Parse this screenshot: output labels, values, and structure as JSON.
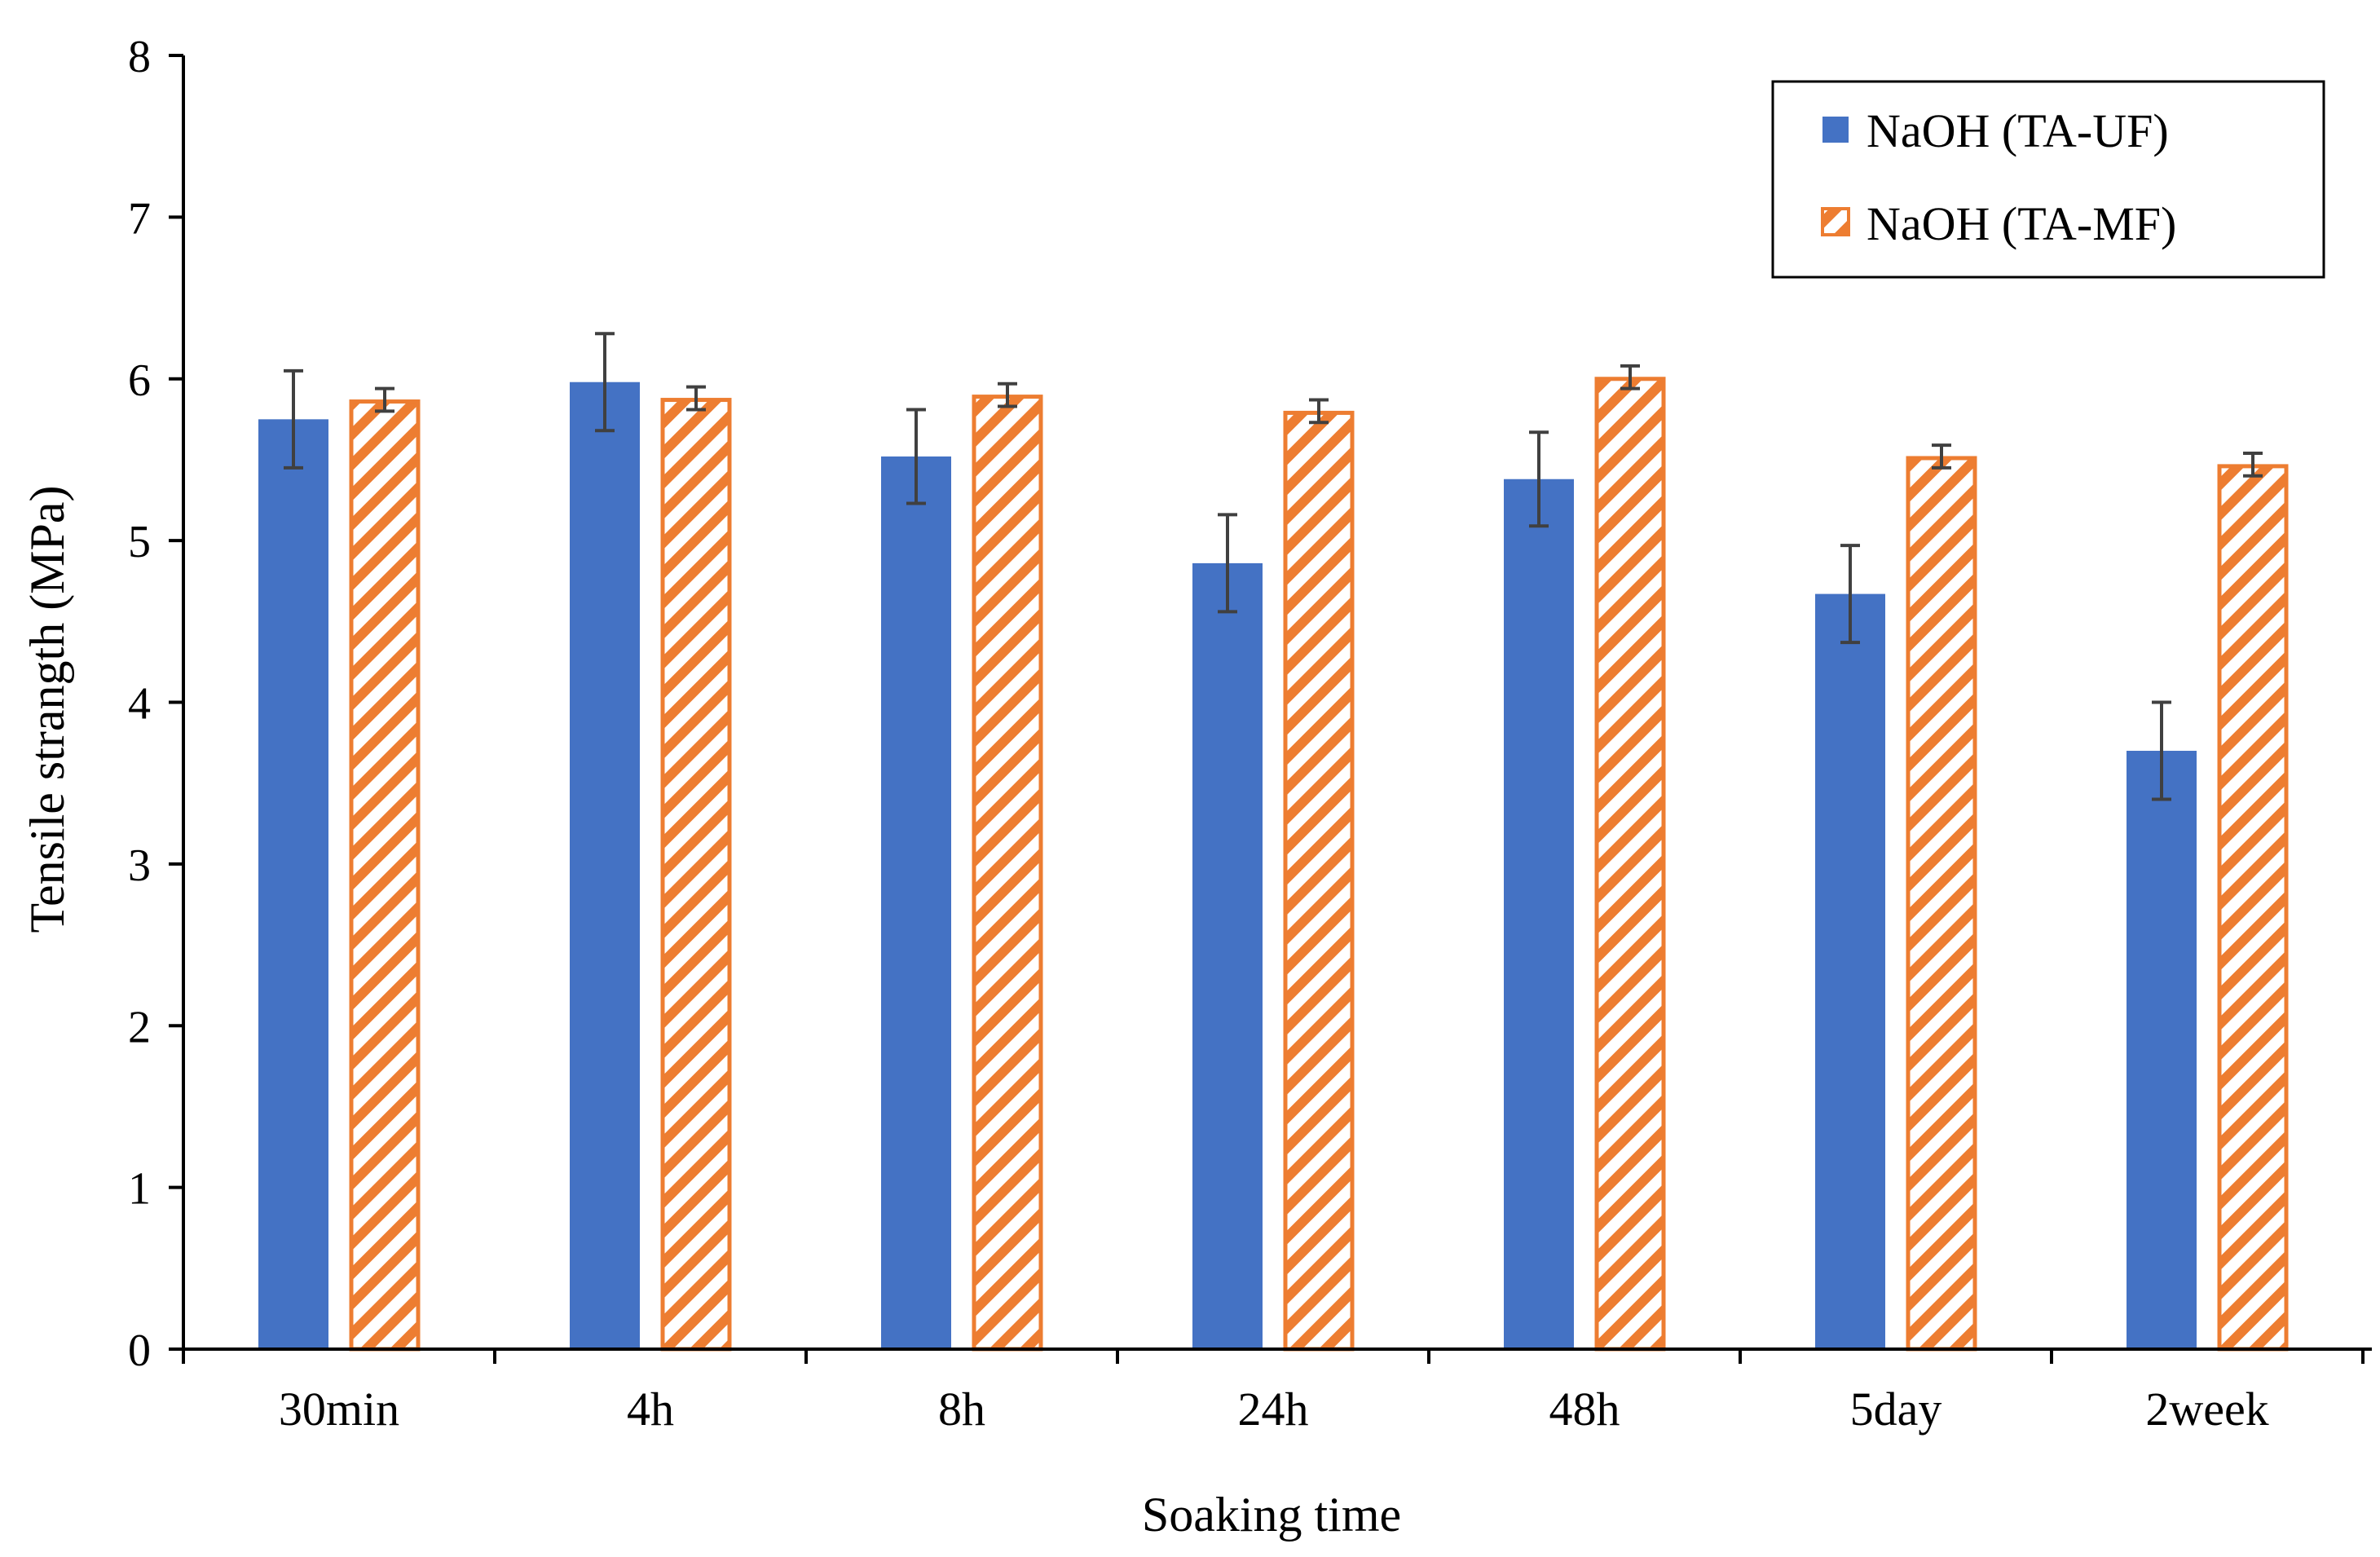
{
  "chart_data": {
    "type": "bar",
    "title": "",
    "xlabel": "Soaking time",
    "ylabel": "Tensile strangth (MPa)",
    "ylim": [
      0,
      8
    ],
    "yticks": [
      0,
      1,
      2,
      3,
      4,
      5,
      6,
      7,
      8
    ],
    "grid": false,
    "legend_position": "top-right",
    "categories": [
      "30min",
      "4h",
      "8h",
      "24h",
      "48h",
      "5day",
      "2week"
    ],
    "series": [
      {
        "name": "NaOH (TA-UF)",
        "style": "solid",
        "color": "#4472C4",
        "values": [
          5.75,
          5.98,
          5.52,
          4.86,
          5.38,
          4.67,
          3.7
        ],
        "errors": [
          0.3,
          0.3,
          0.29,
          0.3,
          0.29,
          0.3,
          0.3
        ]
      },
      {
        "name": "NaOH (TA-MF)",
        "style": "hatched",
        "color": "#ED7D31",
        "values": [
          5.87,
          5.88,
          5.9,
          5.8,
          6.01,
          5.52,
          5.47
        ],
        "errors": [
          0.07,
          0.07,
          0.07,
          0.07,
          0.07,
          0.07,
          0.07
        ]
      }
    ]
  }
}
